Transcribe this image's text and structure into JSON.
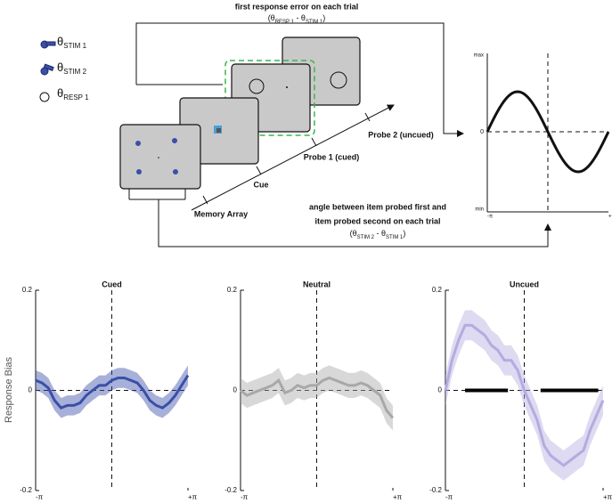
{
  "diagram": {
    "top_label": "first response error on each trial",
    "top_formula": [
      "(θ",
      "RESP 1",
      " - θ",
      "STIM 1",
      ")"
    ],
    "legend": [
      {
        "symbol": "θ",
        "sub": "STIM 1"
      },
      {
        "symbol": "θ",
        "sub": "STIM 2"
      },
      {
        "symbol": "θ",
        "sub": "RESP 1"
      }
    ],
    "timeline": [
      "Memory Array",
      "Cue",
      "Probe 1 (cued)",
      "Probe 2 (uncued)"
    ],
    "bottom_label": [
      "angle between item probed first and",
      "item probed second on each trial"
    ],
    "bottom_formula": [
      "(θ",
      "STIM 2",
      " - θ",
      "STIM 1",
      ")"
    ],
    "schematic": {
      "y_top": "max",
      "y_mid": "0",
      "y_bottom": "min",
      "x_left": "-π",
      "x_right": "+π"
    }
  },
  "chart_data": [
    {
      "type": "line",
      "title": "Cued",
      "y_label": "Response Bias",
      "color": "#3b4fa8",
      "x": [
        -3.14,
        -2.88,
        -2.62,
        -2.36,
        -2.09,
        -1.83,
        -1.57,
        -1.31,
        -1.05,
        -0.79,
        -0.52,
        -0.26,
        0,
        0.26,
        0.52,
        0.79,
        1.05,
        1.31,
        1.57,
        1.83,
        2.09,
        2.36,
        2.62,
        2.88,
        3.14
      ],
      "values": [
        0.02,
        0.015,
        0.005,
        -0.02,
        -0.035,
        -0.03,
        -0.03,
        -0.025,
        -0.01,
        0,
        0.01,
        0.01,
        0.02,
        0.025,
        0.025,
        0.02,
        0.015,
        0,
        -0.02,
        -0.03,
        -0.035,
        -0.025,
        -0.01,
        0.01,
        0.03
      ],
      "errors": [
        0.02,
        0.02,
        0.02,
        0.02,
        0.02,
        0.02,
        0.02,
        0.02,
        0.02,
        0.02,
        0.02,
        0.02,
        0.02,
        0.02,
        0.02,
        0.02,
        0.02,
        0.02,
        0.02,
        0.02,
        0.02,
        0.02,
        0.02,
        0.02,
        0.02
      ],
      "xlim": [
        -3.1416,
        3.1416
      ],
      "xticks": [
        {
          "value": -3.1416,
          "label": "-π"
        },
        {
          "value": 3.1416,
          "label": "+π"
        }
      ],
      "ylim": [
        -0.2,
        0.2
      ],
      "yticks": [
        -0.2,
        0,
        0.2
      ]
    },
    {
      "type": "line",
      "title": "Neutral",
      "color": "#a8a8a8",
      "x": [
        -3.14,
        -2.88,
        -2.62,
        -2.36,
        -2.09,
        -1.83,
        -1.57,
        -1.31,
        -1.05,
        -0.79,
        -0.52,
        -0.26,
        0,
        0.26,
        0.52,
        0.79,
        1.05,
        1.31,
        1.57,
        1.83,
        2.09,
        2.36,
        2.62,
        2.88,
        3.14
      ],
      "values": [
        0,
        -0.01,
        -0.005,
        0,
        0.005,
        0.01,
        0.02,
        -0.005,
        0,
        0.01,
        0.005,
        0.01,
        0.01,
        0.02,
        0.025,
        0.02,
        0.015,
        0.01,
        0.01,
        0.015,
        0.01,
        0,
        -0.01,
        -0.04,
        -0.055
      ],
      "errors": [
        0.025,
        0.025,
        0.025,
        0.025,
        0.025,
        0.025,
        0.025,
        0.025,
        0.025,
        0.025,
        0.025,
        0.025,
        0.025,
        0.025,
        0.025,
        0.025,
        0.025,
        0.025,
        0.025,
        0.025,
        0.025,
        0.025,
        0.025,
        0.025,
        0.025
      ],
      "xlim": [
        -3.1416,
        3.1416
      ],
      "xticks": [
        {
          "value": -3.1416,
          "label": "-π"
        },
        {
          "value": 3.1416,
          "label": "+π"
        }
      ],
      "ylim": [
        -0.2,
        0.2
      ],
      "yticks": [
        -0.2,
        0,
        0.2
      ]
    },
    {
      "type": "line",
      "title": "Uncued",
      "color": "#b3acdf",
      "x": [
        -3.14,
        -2.88,
        -2.62,
        -2.36,
        -2.09,
        -1.83,
        -1.57,
        -1.31,
        -1.05,
        -0.79,
        -0.52,
        -0.26,
        0,
        0.26,
        0.52,
        0.79,
        1.05,
        1.31,
        1.57,
        1.83,
        2.09,
        2.36,
        2.62,
        2.88,
        3.14
      ],
      "values": [
        0,
        0.06,
        0.1,
        0.13,
        0.13,
        0.12,
        0.11,
        0.09,
        0.08,
        0.06,
        0.06,
        0.04,
        0,
        -0.03,
        -0.06,
        -0.11,
        -0.13,
        -0.14,
        -0.15,
        -0.14,
        -0.13,
        -0.12,
        -0.08,
        -0.05,
        -0.02
      ],
      "errors": [
        0.03,
        0.03,
        0.03,
        0.03,
        0.03,
        0.03,
        0.03,
        0.03,
        0.03,
        0.03,
        0.03,
        0.03,
        0.03,
        0.03,
        0.03,
        0.03,
        0.03,
        0.03,
        0.03,
        0.03,
        0.03,
        0.03,
        0.03,
        0.03,
        0.03
      ],
      "significant_ranges": [
        [
          -2.36,
          -0.65
        ],
        [
          0.65,
          2.95
        ]
      ],
      "xlim": [
        -3.1416,
        3.1416
      ],
      "xticks": [
        {
          "value": -3.1416,
          "label": "-π"
        },
        {
          "value": 3.1416,
          "label": "+π"
        }
      ],
      "ylim": [
        -0.2,
        0.2
      ],
      "yticks": [
        -0.2,
        0,
        0.2
      ]
    }
  ]
}
